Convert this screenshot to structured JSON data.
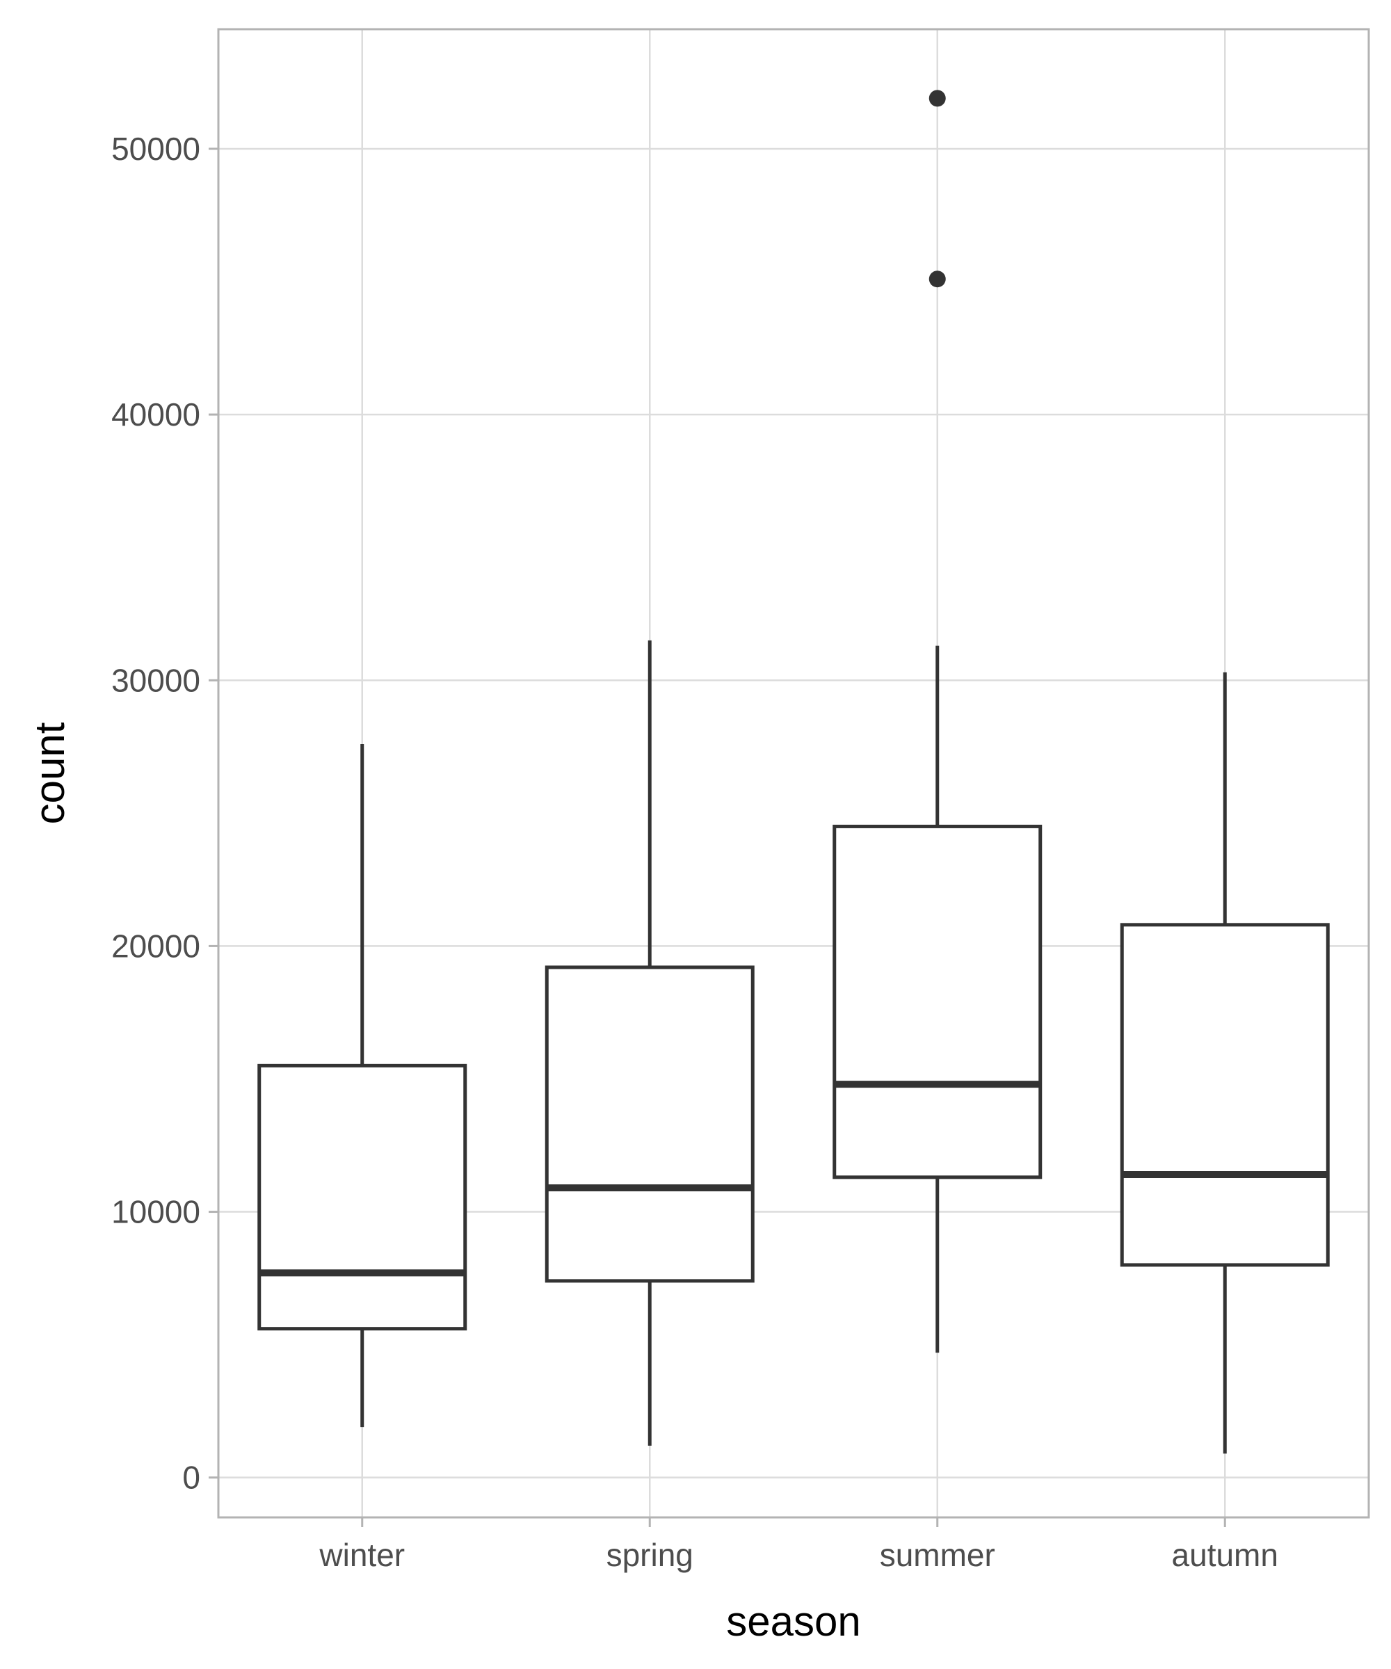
{
  "chart_data": {
    "type": "boxplot",
    "xlabel": "season",
    "ylabel": "count",
    "ylim": [
      -1500,
      54500
    ],
    "y_ticks": [
      0,
      10000,
      20000,
      30000,
      40000,
      50000
    ],
    "y_tick_labels": [
      "0",
      "10000",
      "20000",
      "30000",
      "40000",
      "50000"
    ],
    "grid": true,
    "legend": "none",
    "categories": [
      "winter",
      "spring",
      "summer",
      "autumn"
    ],
    "boxes": [
      {
        "category": "winter",
        "whisker_low": 1900,
        "q1": 5600,
        "median": 7700,
        "q3": 15500,
        "whisker_high": 27600,
        "outliers": []
      },
      {
        "category": "spring",
        "whisker_low": 1200,
        "q1": 7400,
        "median": 10900,
        "q3": 19200,
        "whisker_high": 31500,
        "outliers": []
      },
      {
        "category": "summer",
        "whisker_low": 4700,
        "q1": 11300,
        "median": 14800,
        "q3": 24500,
        "whisker_high": 31300,
        "outliers": [
          45100,
          51900
        ]
      },
      {
        "category": "autumn",
        "whisker_low": 900,
        "q1": 8000,
        "median": 11400,
        "q3": 20800,
        "whisker_high": 30300,
        "outliers": []
      }
    ],
    "colors": {
      "box_line": "#333333",
      "grid": "#dcdcdc",
      "panel_border": "#b3b3b3",
      "tick_text": "#4d4d4d"
    }
  }
}
